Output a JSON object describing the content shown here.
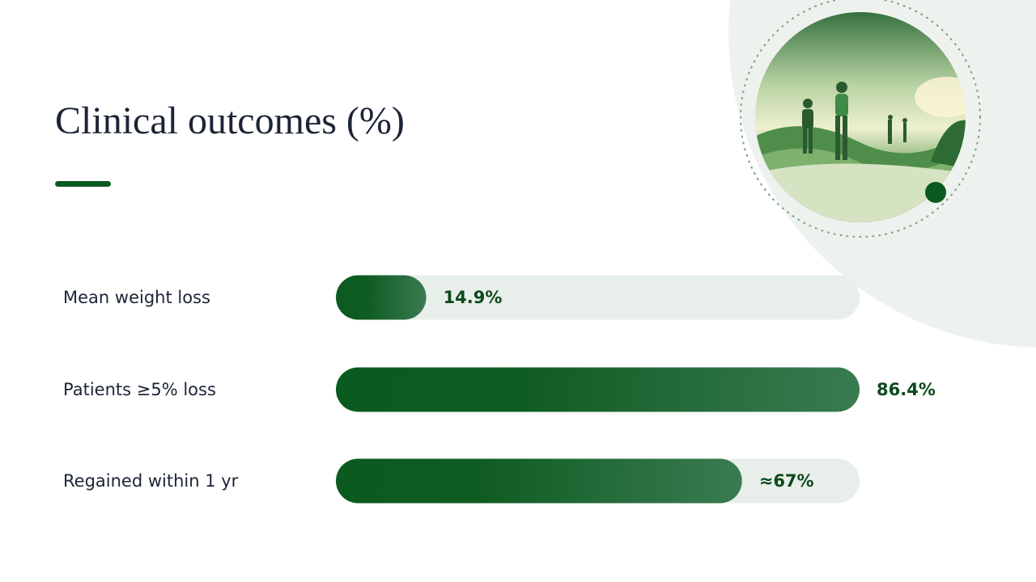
{
  "chart_data": {
    "type": "bar",
    "orientation": "horizontal",
    "title": "Clinical outcomes (%)",
    "categories": [
      "Mean weight loss",
      "Patients ≥5% loss",
      "Regained within 1 yr"
    ],
    "values": [
      14.9,
      86.4,
      67
    ],
    "value_labels": [
      "14.9%",
      "86.4%",
      "≈67%"
    ],
    "color": "#0b5a1f"
  }
}
